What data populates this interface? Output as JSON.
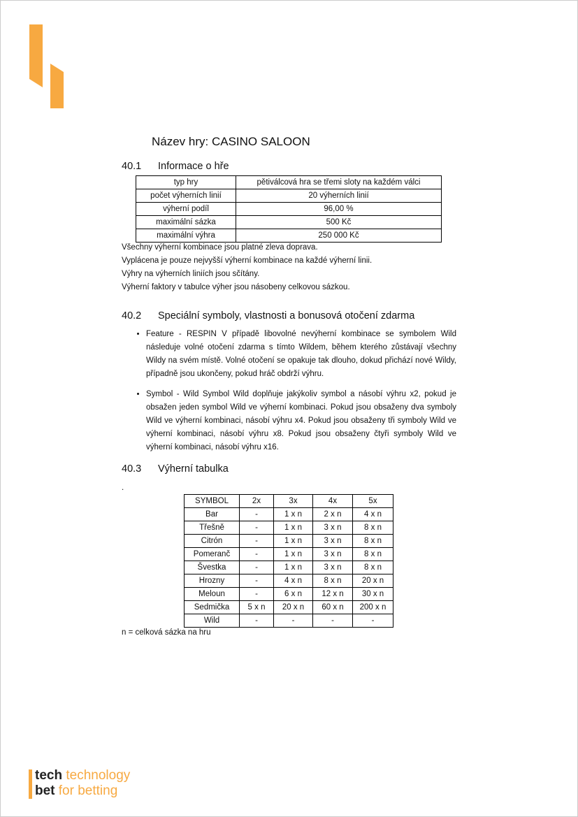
{
  "title": "Název hry: CASINO SALOON",
  "sections": [
    {
      "num": "40.1",
      "heading": "Informace o hře"
    },
    {
      "num": "40.2",
      "heading": "Speciální symboly, vlastnosti a bonusová otočení zdarma"
    },
    {
      "num": "40.3",
      "heading": "Výherní tabulka"
    }
  ],
  "info_table": [
    [
      "typ hry",
      "pětiválcová hra se třemi sloty na každém válci"
    ],
    [
      "počet výherních linií",
      "20 výherních linií"
    ],
    [
      "výherní podíl",
      "96,00 %"
    ],
    [
      "maximální sázka",
      "500 Kč"
    ],
    [
      "maximální výhra",
      "250 000 Kč"
    ]
  ],
  "info_notes": [
    "Všechny výherní kombinace jsou platné zleva doprava.",
    "Vyplácena je pouze nejvyšší výherní kombinace na každé výherní linii.",
    "Výhry na výherních liniích jsou sčítány.",
    "Výherní faktory v tabulce výher jsou násobeny celkovou sázkou."
  ],
  "bullets": [
    "Feature - RESPIN V případě libovolné nevýherní kombinace se symbolem Wild následuje volné otočení zdarma s tímto Wildem, během kterého zůstávají všechny Wildy na svém místě. Volné otočení se opakuje tak dlouho, dokud přichází nové Wildy, případně jsou ukončeny, pokud hráč obdrží výhru.",
    "Symbol - Wild Symbol Wild doplňuje jakýkoliv symbol a násobí výhru x2, pokud je obsažen jeden symbol Wild ve výherní kombinaci. Pokud jsou obsaženy dva symboly Wild ve výherní kombinaci, násobí výhru x4. Pokud jsou obsaženy tři symboly Wild ve výherní kombinaci, násobí výhru x8. Pokud jsou obsaženy čtyři symboly Wild ve výherní kombinaci, násobí výhru x16."
  ],
  "dot": ".",
  "paytable": {
    "header": [
      "SYMBOL",
      "2x",
      "3x",
      "4x",
      "5x"
    ],
    "rows": [
      [
        "Bar",
        "-",
        "1 x n",
        "2 x n",
        "4 x n"
      ],
      [
        "Třešně",
        "-",
        "1 x n",
        "3 x n",
        "8 x n"
      ],
      [
        "Citrón",
        "-",
        "1 x n",
        "3 x n",
        "8 x n"
      ],
      [
        "Pomeranč",
        "-",
        "1 x n",
        "3 x n",
        "8 x n"
      ],
      [
        "Švestka",
        "-",
        "1 x n",
        "3 x n",
        "8 x n"
      ],
      [
        "Hrozny",
        "-",
        "4 x n",
        "8 x n",
        "20 x n"
      ],
      [
        "Meloun",
        "-",
        "6 x n",
        "12 x n",
        "30 x n"
      ],
      [
        "Sedmička",
        "5 x n",
        "20 x n",
        "60 x n",
        "200 x n"
      ],
      [
        "Wild",
        "-",
        "-",
        "-",
        "-"
      ]
    ]
  },
  "footnote": "n = celková sázka na hru",
  "logo": {
    "tech": "tech",
    "bet": "bet",
    "tagline1": "technology",
    "tagline2": "for betting"
  },
  "colors": {
    "accent": "#f7a941",
    "text": "#111111"
  }
}
